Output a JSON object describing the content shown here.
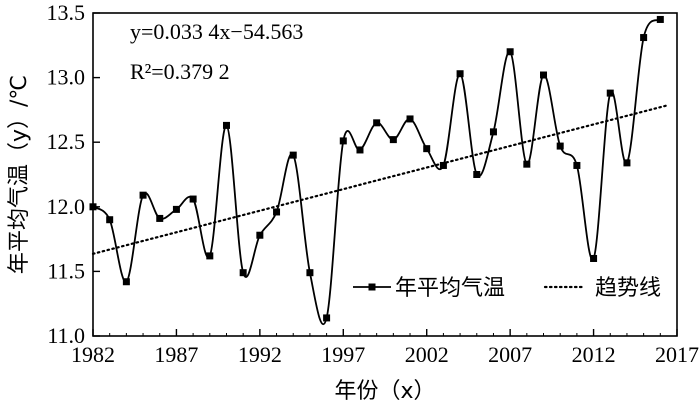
{
  "chart_data": {
    "type": "line",
    "xlabel": "年份（x）",
    "ylabel": "年平均气温（y）/℃",
    "xlim": [
      1982,
      2017
    ],
    "ylim": [
      11.0,
      13.5
    ],
    "x_ticks": [
      "1982",
      "1987",
      "1992",
      "1997",
      "2002",
      "2007",
      "2012",
      "2017"
    ],
    "y_ticks": [
      "11.0",
      "11.5",
      "12.0",
      "12.5",
      "13.0",
      "13.5"
    ],
    "grid": false,
    "legend_position": "bottom-right",
    "annotations": {
      "equation": "y=0.033 4x−54.563",
      "r2": "R²=0.379 2"
    },
    "series": [
      {
        "name": "年平均气温",
        "style": "solid-smooth-square-markers",
        "color": "#000000",
        "x": [
          1982,
          1983,
          1984,
          1985,
          1986,
          1987,
          1988,
          1989,
          1990,
          1991,
          1992,
          1993,
          1994,
          1995,
          1996,
          1997,
          1998,
          1999,
          2000,
          2001,
          2002,
          2003,
          2004,
          2005,
          2006,
          2007,
          2008,
          2009,
          2010,
          2011,
          2012,
          2013,
          2014,
          2015,
          2016
        ],
        "y": [
          12.0,
          11.9,
          11.42,
          12.09,
          11.91,
          11.98,
          12.06,
          11.62,
          12.63,
          11.49,
          11.78,
          11.96,
          12.4,
          11.49,
          11.14,
          12.51,
          12.44,
          12.65,
          12.52,
          12.68,
          12.45,
          12.32,
          13.03,
          12.25,
          12.58,
          13.2,
          12.33,
          13.02,
          12.47,
          12.32,
          11.6,
          12.88,
          12.34,
          13.31,
          13.45
        ]
      },
      {
        "name": "趋势线",
        "style": "dotted",
        "color": "#000000",
        "slope": 0.0334,
        "intercept": -54.563
      }
    ]
  }
}
